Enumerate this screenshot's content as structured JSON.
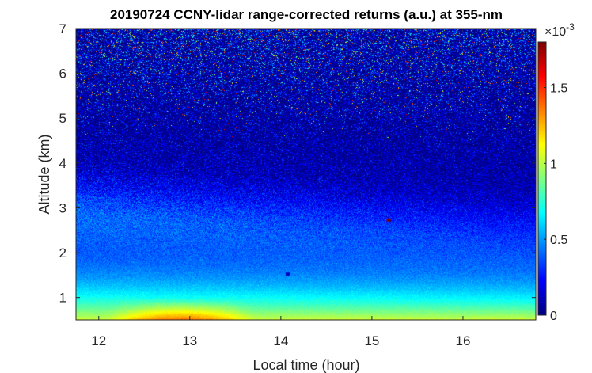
{
  "chart_data": {
    "type": "heatmap",
    "title": "20190724 CCNY-lidar range-corrected returns (a.u.) at 355-nm",
    "xlabel": "Local time (hour)",
    "ylabel": "Altitude (km)",
    "xlim": [
      11.75,
      16.8
    ],
    "ylim": [
      0.5,
      7
    ],
    "xticks": [
      "12",
      "13",
      "14",
      "15",
      "16"
    ],
    "yticks": [
      "1",
      "2",
      "3",
      "4",
      "5",
      "6",
      "7"
    ],
    "colorbar": {
      "range": [
        0,
        0.0018
      ],
      "multiplier_base": "×10",
      "multiplier_exp": "-3",
      "ticks": [
        "0",
        "0.5",
        "1",
        "1.5"
      ],
      "tick_values": [
        0,
        0.5,
        1,
        1.5
      ],
      "max_scaled": 1.8,
      "colormap": "jet"
    },
    "features": [
      {
        "kind": "aerosol-maximum",
        "time_range": [
          12.1,
          13.7
        ],
        "altitude_range": [
          0.5,
          1.0
        ],
        "value_scaled": 1.35
      },
      {
        "kind": "surface-layer",
        "time_range": [
          11.75,
          16.8
        ],
        "altitude": 0.6,
        "value_scaled": 1.05
      },
      {
        "kind": "point-return",
        "time": 15.18,
        "altitude": 2.73,
        "value_scaled": 1.8
      },
      {
        "kind": "point-return",
        "time": 14.07,
        "altitude": 1.52,
        "value_scaled": 0.1
      }
    ]
  }
}
